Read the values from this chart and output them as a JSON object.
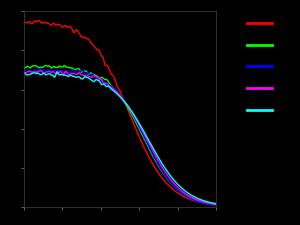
{
  "background_color": "#000000",
  "lines": [
    {
      "color": "#ff0000",
      "label": "",
      "lw": 1.0
    },
    {
      "color": "#00ff00",
      "label": "",
      "lw": 1.0
    },
    {
      "color": "#0000ff",
      "label": "",
      "lw": 1.0
    },
    {
      "color": "#ff00ff",
      "label": "",
      "lw": 1.0
    },
    {
      "color": "#00ffff",
      "label": "",
      "lw": 1.0
    }
  ],
  "xlim": [
    0.0,
    1.0
  ],
  "ylim": [
    0.0,
    1.0
  ],
  "figsize": [
    3.0,
    2.25
  ],
  "dpi": 100
}
